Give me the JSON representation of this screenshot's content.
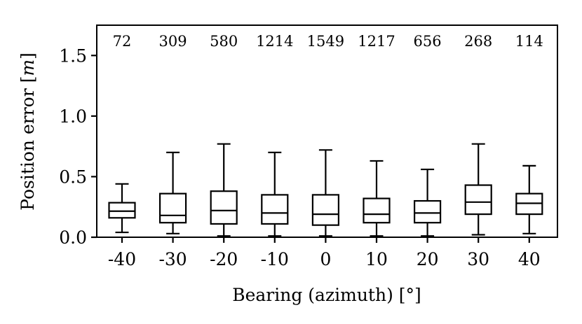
{
  "chart_data": {
    "type": "box",
    "xlabel": "Bearing (azimuth) [°]",
    "ylabel": "Position error [m]",
    "ylabel_text": "Position error ",
    "ylabel_unit": "m",
    "ylim": [
      0.0,
      1.75
    ],
    "yticks": [
      "0.0",
      "0.5",
      "1.0",
      "1.5"
    ],
    "ytick_values": [
      0.0,
      0.5,
      1.0,
      1.5
    ],
    "categories": [
      "-40",
      "-30",
      "-20",
      "-10",
      "0",
      "10",
      "20",
      "30",
      "40"
    ],
    "counts": [
      "72",
      "309",
      "580",
      "1214",
      "1549",
      "1217",
      "656",
      "268",
      "114"
    ],
    "boxes": [
      {
        "whislo": 0.04,
        "q1": 0.16,
        "med": 0.215,
        "q3": 0.285,
        "whishi": 0.44
      },
      {
        "whislo": 0.03,
        "q1": 0.12,
        "med": 0.18,
        "q3": 0.36,
        "whishi": 0.7
      },
      {
        "whislo": 0.01,
        "q1": 0.11,
        "med": 0.22,
        "q3": 0.38,
        "whishi": 0.77
      },
      {
        "whislo": 0.01,
        "q1": 0.11,
        "med": 0.2,
        "q3": 0.35,
        "whishi": 0.7
      },
      {
        "whislo": 0.01,
        "q1": 0.1,
        "med": 0.19,
        "q3": 0.35,
        "whishi": 0.72
      },
      {
        "whislo": 0.01,
        "q1": 0.12,
        "med": 0.19,
        "q3": 0.32,
        "whishi": 0.63
      },
      {
        "whislo": 0.01,
        "q1": 0.12,
        "med": 0.2,
        "q3": 0.3,
        "whishi": 0.56
      },
      {
        "whislo": 0.02,
        "q1": 0.19,
        "med": 0.29,
        "q3": 0.43,
        "whishi": 0.77
      },
      {
        "whislo": 0.03,
        "q1": 0.19,
        "med": 0.28,
        "q3": 0.36,
        "whishi": 0.59
      }
    ],
    "grid": false,
    "legend": "none"
  }
}
